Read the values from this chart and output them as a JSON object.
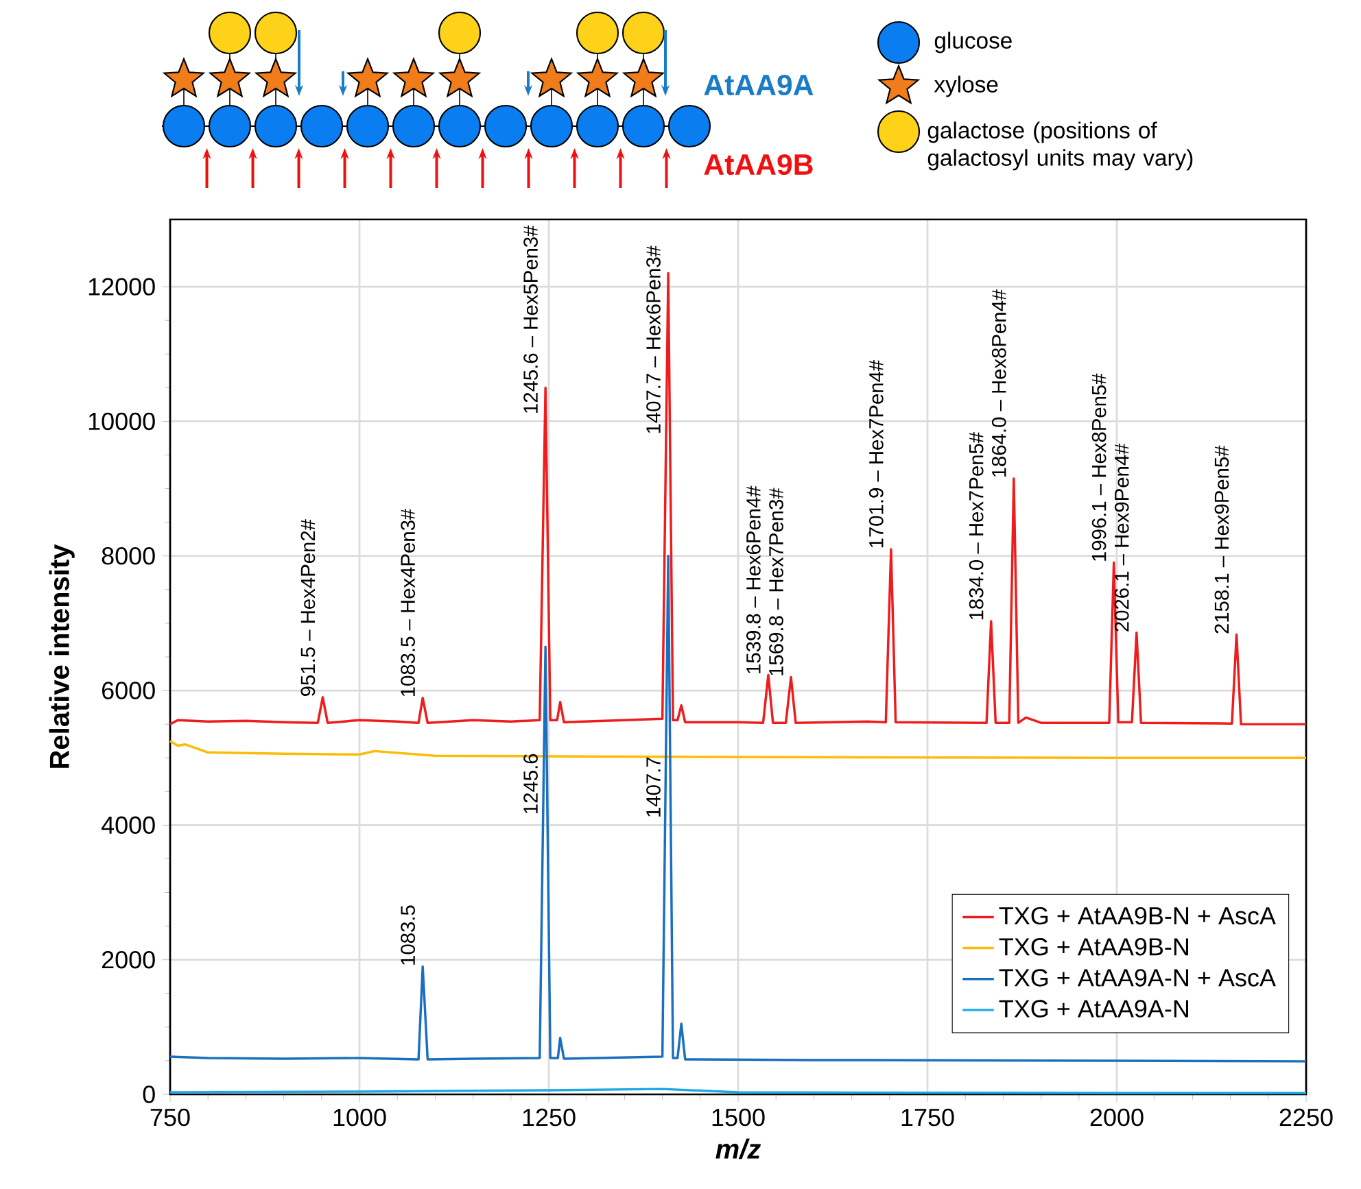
{
  "chart_data": {
    "type": "line",
    "xlabel": "m/z",
    "ylabel": "Relative intensity",
    "xlim": [
      750,
      2250
    ],
    "xticks": [
      750,
      1000,
      1250,
      1500,
      1750,
      2000,
      2250
    ],
    "ylim": [
      0,
      13000
    ],
    "yticks": [
      0,
      2000,
      4000,
      6000,
      8000,
      10000,
      12000
    ],
    "grid": true,
    "legend": "bottom right",
    "marker": "none",
    "line_style": "solid",
    "series": [
      {
        "name": "TXG + AtAA9B-N + AscA",
        "color": "#ee1c1c",
        "x": [
          750,
          760,
          800,
          850,
          900,
          945,
          951.5,
          958,
          1000,
          1050,
          1078,
          1083.5,
          1090,
          1150,
          1200,
          1238,
          1245.6,
          1252,
          1261,
          1265,
          1270,
          1350,
          1400,
          1407.7,
          1414,
          1420,
          1425,
          1430,
          1500,
          1533,
          1539.8,
          1546,
          1563,
          1569.8,
          1576,
          1670,
          1695,
          1701.9,
          1708,
          1828,
          1834.0,
          1840,
          1858,
          1864.0,
          1870,
          1880,
          1900,
          1990,
          1996.1,
          2002,
          2020,
          2026.1,
          2032,
          2152,
          2158.1,
          2164,
          2250
        ],
        "values": [
          5500,
          5560,
          5540,
          5550,
          5530,
          5520,
          5900,
          5520,
          5560,
          5540,
          5520,
          5890,
          5520,
          5560,
          5540,
          5560,
          10500,
          5560,
          5560,
          5830,
          5530,
          5560,
          5580,
          12200,
          5560,
          5560,
          5780,
          5530,
          5530,
          5520,
          6230,
          5520,
          5520,
          6200,
          5520,
          5540,
          5530,
          8100,
          5530,
          5520,
          7030,
          5520,
          5520,
          9150,
          5520,
          5600,
          5520,
          5520,
          7900,
          5530,
          5530,
          6860,
          5520,
          5510,
          6830,
          5500,
          5500
        ]
      },
      {
        "name": "TXG + AtAA9B-N",
        "color": "#fbbc05",
        "x": [
          750,
          760,
          770,
          800,
          900,
          1000,
          1020,
          1100,
          1300,
          1600,
          2000,
          2250
        ],
        "values": [
          5250,
          5180,
          5200,
          5080,
          5060,
          5050,
          5100,
          5030,
          5020,
          5010,
          5000,
          5000
        ]
      },
      {
        "name": "TXG + AtAA9A-N + AscA",
        "color": "#1a6fbf",
        "x": [
          750,
          800,
          900,
          1000,
          1078,
          1083.5,
          1090,
          1150,
          1238,
          1245.6,
          1252,
          1262,
          1265,
          1270,
          1400,
          1407.7,
          1414,
          1420,
          1425,
          1430,
          1600,
          2000,
          2250
        ],
        "values": [
          560,
          540,
          530,
          540,
          520,
          1900,
          520,
          530,
          540,
          6650,
          540,
          540,
          840,
          530,
          560,
          8000,
          540,
          540,
          1050,
          520,
          510,
          500,
          490
        ]
      },
      {
        "name": "TXG + AtAA9A-N",
        "color": "#1ea8e6",
        "x": [
          750,
          1000,
          1250,
          1400,
          1500,
          2000,
          2250
        ],
        "values": [
          30,
          40,
          60,
          80,
          30,
          20,
          20
        ]
      }
    ],
    "annotations": [
      {
        "text": "951.5 – Hex4Pen2#",
        "x": 951.5,
        "y": 5900
      },
      {
        "text": "1083.5 – Hex4Pen3#",
        "x": 1083.5,
        "y": 5890
      },
      {
        "text": "1245.6 – Hex5Pen3#",
        "x": 1245.6,
        "y": 10100
      },
      {
        "text": "1407.7 – Hex6Pen3#",
        "x": 1407.7,
        "y": 9800
      },
      {
        "text": "1539.8 – Hex6Pen4#",
        "x": 1539.8,
        "y": 6230
      },
      {
        "text": "1569.8 – Hex7Pen3#",
        "x": 1569.8,
        "y": 6200
      },
      {
        "text": "1701.9 – Hex7Pen4#",
        "x": 1701.9,
        "y": 8100
      },
      {
        "text": "1834.0 – Hex7Pen5#",
        "x": 1834.0,
        "y": 7030
      },
      {
        "text": "1864.0 – Hex8Pen4#",
        "x": 1864.0,
        "y": 9150
      },
      {
        "text": "1996.1 – Hex8Pen5#",
        "x": 1996.1,
        "y": 7900
      },
      {
        "text": "2026.1 – Hex9Pen4#",
        "x": 2026.1,
        "y": 6860
      },
      {
        "text": "2158.1 – Hex9Pen5#",
        "x": 2158.1,
        "y": 6830
      },
      {
        "text": "1083.5",
        "x": 1083.5,
        "y": 1900
      },
      {
        "text": "1245.6",
        "x": 1245.6,
        "y": 4150
      },
      {
        "text": "1407.7",
        "x": 1407.7,
        "y": 4100
      },
      "AtAA9A",
      "AtAA9B",
      "glucose",
      "xylose",
      "galactose (positions of galactosyl units may vary)"
    ]
  }
}
